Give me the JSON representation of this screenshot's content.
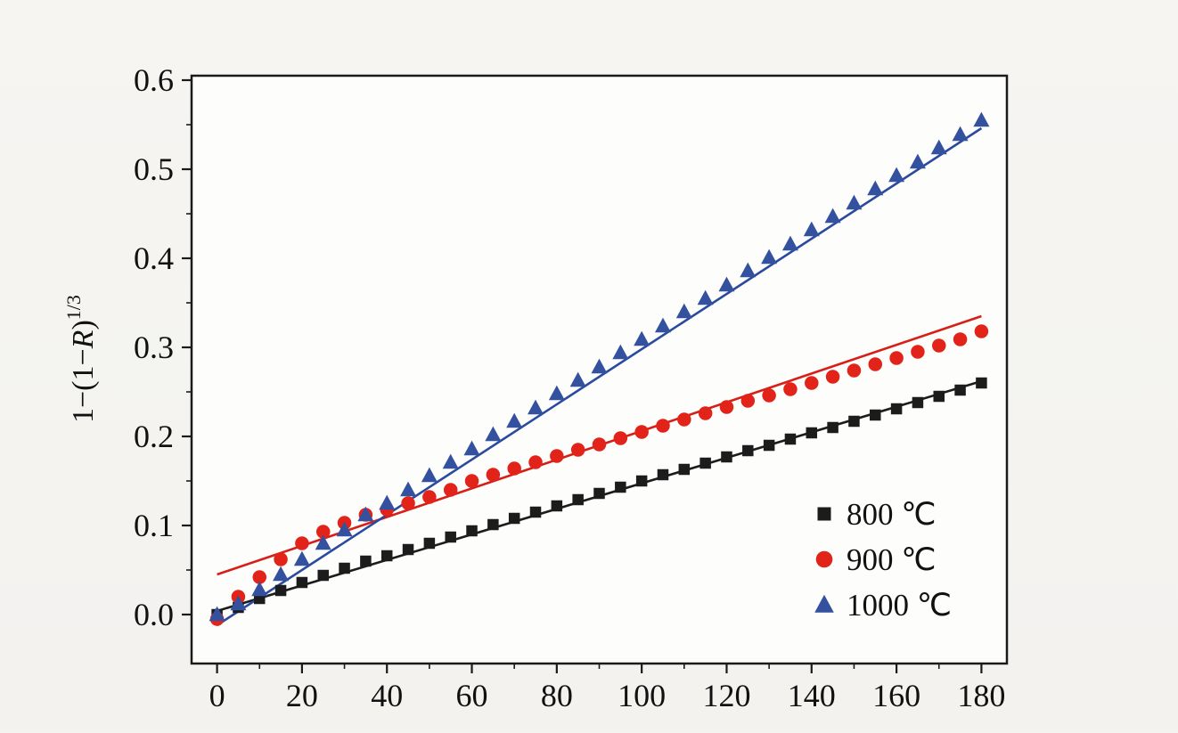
{
  "figure": {
    "background": "#f4f3f0",
    "plot_background": "#fdfdfc",
    "frame_color": "#1a1a1a"
  },
  "chart_data": {
    "type": "scatter",
    "title": "",
    "xlabel": "",
    "ylabel_parts": {
      "prefix": "1−(1−",
      "italic": "R",
      "suffix": ")",
      "exponent": "1/3"
    },
    "xlim": [
      -6,
      186
    ],
    "ylim": [
      -0.055,
      0.605
    ],
    "x_ticks": [
      0,
      20,
      40,
      60,
      80,
      100,
      120,
      140,
      160,
      180
    ],
    "x_tick_labels": [
      "0",
      "20",
      "40",
      "60",
      "80",
      "100",
      "120",
      "140",
      "160",
      "180"
    ],
    "y_ticks": [
      0.0,
      0.1,
      0.2,
      0.3,
      0.4,
      0.5,
      0.6
    ],
    "y_tick_labels": [
      "0.0",
      "0.1",
      "0.2",
      "0.3",
      "0.4",
      "0.5",
      "0.6"
    ],
    "grid": false,
    "legend_position": "inside lower-right",
    "series": [
      {
        "name": "800 ℃",
        "marker": "square",
        "color": "#1c1c1c",
        "line_color": "#1c1c1c",
        "fit_line": [
          [
            0,
            0.004
          ],
          [
            180,
            0.262
          ]
        ],
        "points": [
          [
            0,
            0.0
          ],
          [
            5,
            0.008
          ],
          [
            10,
            0.018
          ],
          [
            15,
            0.027
          ],
          [
            20,
            0.036
          ],
          [
            25,
            0.044
          ],
          [
            30,
            0.052
          ],
          [
            35,
            0.06
          ],
          [
            40,
            0.066
          ],
          [
            45,
            0.073
          ],
          [
            50,
            0.08
          ],
          [
            55,
            0.087
          ],
          [
            60,
            0.094
          ],
          [
            65,
            0.101
          ],
          [
            70,
            0.108
          ],
          [
            75,
            0.115
          ],
          [
            80,
            0.122
          ],
          [
            85,
            0.129
          ],
          [
            90,
            0.136
          ],
          [
            95,
            0.143
          ],
          [
            100,
            0.15
          ],
          [
            105,
            0.157
          ],
          [
            110,
            0.163
          ],
          [
            115,
            0.17
          ],
          [
            120,
            0.177
          ],
          [
            125,
            0.184
          ],
          [
            130,
            0.19
          ],
          [
            135,
            0.197
          ],
          [
            140,
            0.204
          ],
          [
            145,
            0.21
          ],
          [
            150,
            0.217
          ],
          [
            155,
            0.224
          ],
          [
            160,
            0.231
          ],
          [
            165,
            0.238
          ],
          [
            170,
            0.245
          ],
          [
            175,
            0.252
          ],
          [
            180,
            0.26
          ]
        ]
      },
      {
        "name": "900 ℃",
        "marker": "circle",
        "color": "#e2231a",
        "line_color": "#d61f17",
        "fit_line": [
          [
            0,
            0.045
          ],
          [
            180,
            0.335
          ]
        ],
        "points": [
          [
            0,
            -0.005
          ],
          [
            5,
            0.02
          ],
          [
            10,
            0.042
          ],
          [
            15,
            0.062
          ],
          [
            20,
            0.08
          ],
          [
            25,
            0.093
          ],
          [
            30,
            0.103
          ],
          [
            35,
            0.112
          ],
          [
            40,
            0.118
          ],
          [
            45,
            0.125
          ],
          [
            50,
            0.132
          ],
          [
            55,
            0.14
          ],
          [
            60,
            0.15
          ],
          [
            65,
            0.157
          ],
          [
            70,
            0.164
          ],
          [
            75,
            0.171
          ],
          [
            80,
            0.178
          ],
          [
            85,
            0.185
          ],
          [
            90,
            0.191
          ],
          [
            95,
            0.198
          ],
          [
            100,
            0.205
          ],
          [
            105,
            0.212
          ],
          [
            110,
            0.219
          ],
          [
            115,
            0.226
          ],
          [
            120,
            0.233
          ],
          [
            125,
            0.24
          ],
          [
            130,
            0.246
          ],
          [
            135,
            0.253
          ],
          [
            140,
            0.26
          ],
          [
            145,
            0.267
          ],
          [
            150,
            0.274
          ],
          [
            155,
            0.281
          ],
          [
            160,
            0.288
          ],
          [
            165,
            0.295
          ],
          [
            170,
            0.302
          ],
          [
            175,
            0.309
          ],
          [
            180,
            0.318
          ]
        ]
      },
      {
        "name": "1000 ℃",
        "marker": "triangle",
        "color": "#33519f",
        "line_color": "#2a4aa0",
        "fit_line": [
          [
            0,
            -0.012
          ],
          [
            180,
            0.546
          ]
        ],
        "points": [
          [
            0,
            0.0
          ],
          [
            5,
            0.012
          ],
          [
            10,
            0.028
          ],
          [
            15,
            0.045
          ],
          [
            20,
            0.062
          ],
          [
            25,
            0.08
          ],
          [
            30,
            0.095
          ],
          [
            35,
            0.112
          ],
          [
            40,
            0.125
          ],
          [
            45,
            0.14
          ],
          [
            50,
            0.156
          ],
          [
            55,
            0.171
          ],
          [
            60,
            0.186
          ],
          [
            65,
            0.202
          ],
          [
            70,
            0.217
          ],
          [
            75,
            0.232
          ],
          [
            80,
            0.248
          ],
          [
            85,
            0.263
          ],
          [
            90,
            0.278
          ],
          [
            95,
            0.294
          ],
          [
            100,
            0.309
          ],
          [
            105,
            0.324
          ],
          [
            110,
            0.34
          ],
          [
            115,
            0.355
          ],
          [
            120,
            0.37
          ],
          [
            125,
            0.386
          ],
          [
            130,
            0.401
          ],
          [
            135,
            0.416
          ],
          [
            140,
            0.432
          ],
          [
            145,
            0.447
          ],
          [
            150,
            0.462
          ],
          [
            155,
            0.478
          ],
          [
            160,
            0.493
          ],
          [
            165,
            0.508
          ],
          [
            170,
            0.524
          ],
          [
            175,
            0.539
          ],
          [
            180,
            0.555
          ]
        ]
      }
    ]
  }
}
